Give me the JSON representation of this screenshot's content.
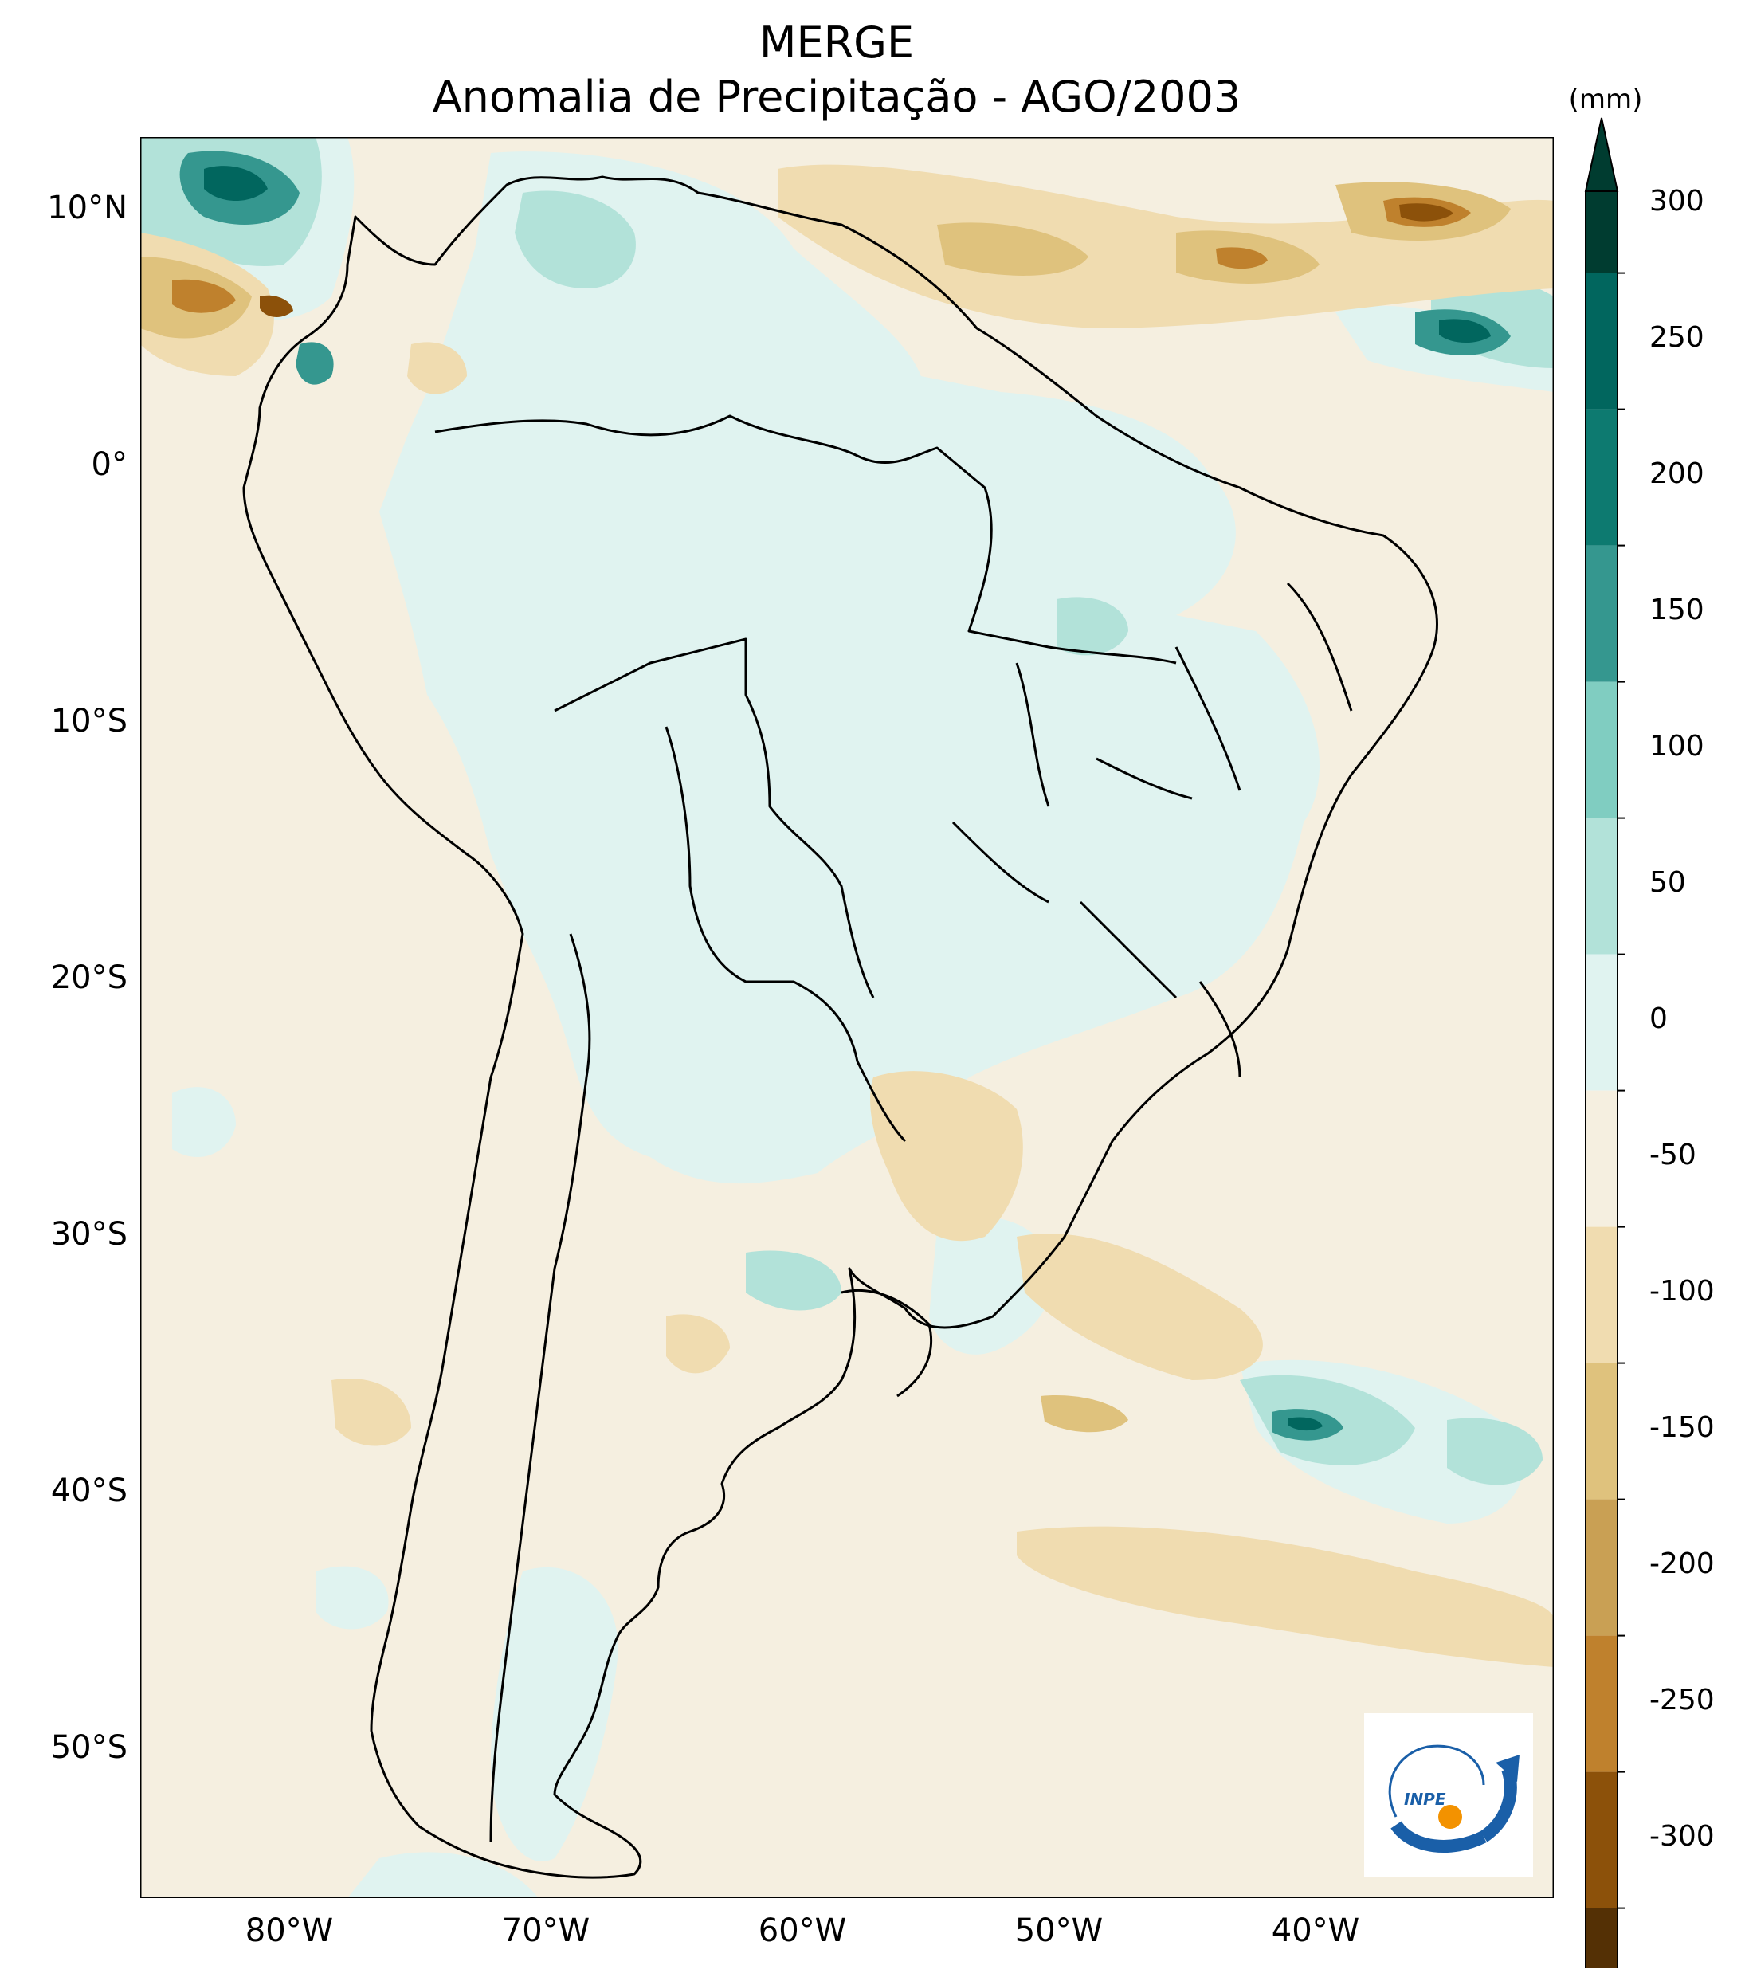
{
  "title": {
    "line1": "MERGE",
    "line2": "Anomalia de Precipitação - AGO/2003"
  },
  "axes": {
    "lat_labels": [
      "10°N",
      "0°",
      "10°S",
      "20°S",
      "30°S",
      "40°S",
      "50°S"
    ],
    "lon_labels": [
      "80°W",
      "70°W",
      "60°W",
      "50°W",
      "40°W"
    ],
    "lat_values": [
      10,
      0,
      -10,
      -20,
      -30,
      -40,
      -50
    ],
    "lon_values": [
      -80,
      -70,
      -60,
      -50,
      -40
    ],
    "lon_range": [
      -85,
      -30
    ],
    "lat_range": [
      -56,
      13
    ]
  },
  "colorbar": {
    "units": "(mm)",
    "tick_labels": [
      "300",
      "250",
      "200",
      "150",
      "100",
      "50",
      "0",
      "-50",
      "-100",
      "-150",
      "-200",
      "-250",
      "-300"
    ],
    "colors": [
      "#003c30",
      "#01665e",
      "#0d7a70",
      "#35978f",
      "#80cdc1",
      "#b2e2d9",
      "#e0f3f0",
      "#f5efe0",
      "#f0dcb0",
      "#dfc27d",
      "#c9a054",
      "#bf812d",
      "#8c510a",
      "#543005"
    ]
  },
  "logo": {
    "text": "INPE",
    "colors": {
      "arc": "#1a5fa8",
      "dot": "#f39200"
    }
  },
  "chart_data": {
    "type": "heatmap",
    "title": "MERGE Anomalia de Precipitação - AGO/2003",
    "xlabel": "",
    "ylabel": "",
    "levels": [
      -300,
      -250,
      -200,
      -150,
      -100,
      -50,
      0,
      50,
      100,
      150,
      200,
      250,
      300
    ]
  }
}
